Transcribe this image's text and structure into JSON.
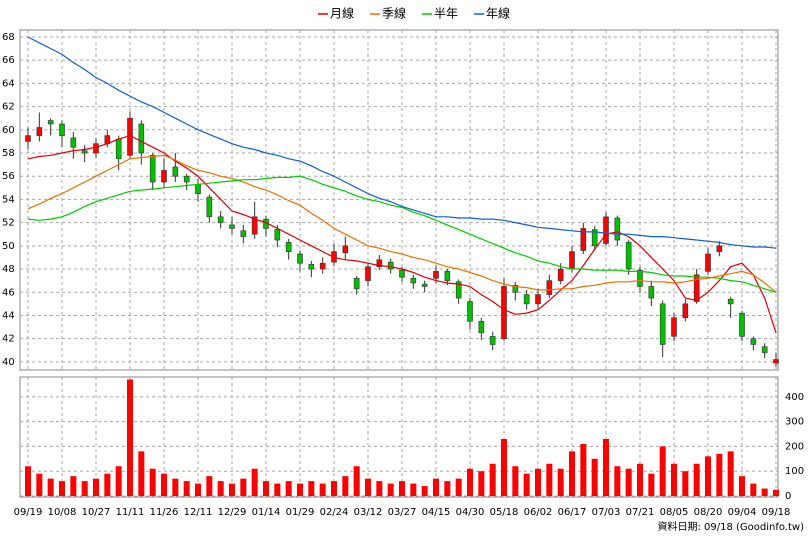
{
  "chart_data": {
    "type": "candlestick",
    "categories": [
      "09/19",
      null,
      null,
      "10/08",
      null,
      null,
      "10/27",
      null,
      null,
      "11/11",
      null,
      null,
      "11/26",
      null,
      null,
      "12/11",
      null,
      null,
      "12/29",
      null,
      null,
      "01/14",
      null,
      null,
      "01/29",
      null,
      null,
      "02/24",
      null,
      null,
      "03/12",
      null,
      null,
      "03/27",
      null,
      null,
      "04/15",
      null,
      null,
      "04/30",
      null,
      null,
      "05/18",
      null,
      null,
      "06/02",
      null,
      null,
      "06/17",
      null,
      null,
      "07/03",
      null,
      null,
      "07/21",
      null,
      null,
      "08/05",
      null,
      null,
      "08/20",
      null,
      null,
      "09/04",
      null,
      null,
      "09/18"
    ],
    "open": [
      59,
      59.5,
      60.8,
      60.5,
      59.3,
      58.2,
      58,
      58.8,
      59.2,
      57.8,
      60.5,
      57.8,
      55.5,
      56.8,
      56,
      55.3,
      54.2,
      52.5,
      51.8,
      51.3,
      51,
      52.3,
      51.4,
      50.3,
      49.3,
      48.4,
      48,
      48.6,
      49.4,
      47.2,
      47,
      48.2,
      48.6,
      47.9,
      47.2,
      46.7,
      47.2,
      47.8,
      46.9,
      45.2,
      43.5,
      42.2,
      42,
      46.6,
      45.8,
      45,
      45.8,
      47,
      48,
      49.6,
      51.4,
      50.2,
      52.4,
      50.3,
      47.9,
      46.5,
      45,
      42.2,
      43.8,
      45.2,
      47.8,
      49.5,
      45.4,
      44.2,
      42,
      41.3,
      39.9
    ],
    "high": [
      60.2,
      61.5,
      61,
      60.8,
      59.8,
      58.7,
      59.3,
      60,
      59.5,
      61.6,
      60.8,
      58,
      57.5,
      58,
      56.2,
      55.8,
      54.4,
      53,
      52.5,
      51.8,
      53.8,
      52.6,
      51.8,
      50.6,
      49.6,
      48.7,
      49,
      50.2,
      50.8,
      47.4,
      48.6,
      49.2,
      48.9,
      48.2,
      47.5,
      47,
      48.3,
      48,
      47.1,
      45.5,
      43.8,
      42.6,
      47.2,
      46.9,
      46.2,
      46.3,
      47.5,
      48.5,
      50,
      52,
      51.7,
      52.9,
      52.6,
      50.5,
      48.2,
      47,
      45.3,
      44.2,
      45.4,
      48,
      49.8,
      50.4,
      45.6,
      44.4,
      42.2,
      41.6,
      40.8
    ],
    "low": [
      58.3,
      59,
      59.5,
      58.5,
      57.5,
      57.2,
      57.6,
      58.5,
      56.5,
      57.5,
      57,
      54.8,
      55,
      55.5,
      54.8,
      53.8,
      52,
      51.5,
      51,
      50.2,
      50.6,
      50.8,
      49.9,
      48.8,
      47.8,
      47.3,
      47.6,
      48.3,
      48.8,
      45.8,
      46.5,
      47.9,
      47.6,
      46.9,
      46.3,
      46,
      46.8,
      46.6,
      45,
      42.8,
      41.9,
      41,
      41.8,
      45.3,
      44.5,
      44.6,
      45.5,
      46.7,
      47.7,
      49.3,
      49.6,
      50,
      50,
      47.5,
      46,
      44.8,
      40.4,
      41.8,
      43.5,
      45,
      47.5,
      49.1,
      43.8,
      41.8,
      41,
      40.3,
      39.6
    ],
    "close": [
      59.5,
      60.2,
      60.5,
      59.5,
      58.5,
      58,
      58.8,
      59.5,
      57.5,
      61,
      58,
      55.5,
      56.5,
      56,
      55.5,
      54.5,
      52.5,
      52,
      51.5,
      50.8,
      52.5,
      51.5,
      50.5,
      49.5,
      48.5,
      48,
      48.5,
      49.5,
      50,
      46.3,
      48.2,
      48.8,
      48,
      47.3,
      46.8,
      46.5,
      47.8,
      47,
      45.5,
      43.5,
      42.5,
      41.5,
      46.5,
      46,
      45,
      45.8,
      47,
      48,
      49.5,
      51.5,
      50,
      52.5,
      50.5,
      48,
      46.5,
      45.5,
      41.5,
      43.8,
      45,
      47.5,
      49.3,
      50,
      45,
      42.2,
      41.5,
      40.8,
      40.2
    ],
    "up_color": "#ff0000",
    "down_color": "#00c000",
    "series": [
      {
        "name": "月線",
        "color": "#e00000",
        "values": [
          57.5,
          57.7,
          57.8,
          58,
          58.2,
          58.3,
          58.5,
          58.8,
          59.2,
          59.5,
          59,
          58.5,
          58,
          57.3,
          56.7,
          56,
          55,
          54,
          53,
          52.7,
          52.3,
          52,
          51.5,
          51,
          50.5,
          50,
          49.5,
          49,
          48.8,
          48.7,
          48.5,
          48.3,
          48.2,
          48,
          47.7,
          47.3,
          47,
          46.8,
          46.7,
          46.5,
          45.8,
          45.2,
          44.5,
          44.1,
          44.2,
          44.5,
          45.3,
          46.2,
          47,
          48.3,
          49.7,
          51,
          51.2,
          50.8,
          50,
          49,
          48,
          47,
          45.5,
          45.3,
          46,
          47,
          48.2,
          48.5,
          47.5,
          45.5,
          42.5
        ]
      },
      {
        "name": "季線",
        "color": "#f07000",
        "values": [
          53.2,
          53.6,
          54.1,
          54.5,
          55,
          55.5,
          56,
          56.5,
          57,
          57.5,
          57.6,
          57.7,
          57.8,
          57.4,
          56.9,
          56.5,
          56.3,
          56,
          55.8,
          55.5,
          55.1,
          54.8,
          54.4,
          53.9,
          53.5,
          52.8,
          52.2,
          51.5,
          51,
          50.5,
          50,
          49.8,
          49.5,
          49.3,
          49,
          48.8,
          48.5,
          48.2,
          48,
          47.7,
          47.4,
          47,
          46.7,
          46.5,
          46.4,
          46.2,
          46.2,
          46.3,
          46.3,
          46.5,
          46.6,
          46.8,
          46.9,
          46.9,
          47,
          46.9,
          46.9,
          46.8,
          46.9,
          47.1,
          47.2,
          47.4,
          47.6,
          47.8,
          47.5,
          46.8,
          46
        ]
      },
      {
        "name": "半年",
        "color": "#00cc00",
        "values": [
          52.3,
          52.2,
          52.3,
          52.5,
          52.9,
          53.4,
          53.8,
          54.1,
          54.4,
          54.7,
          54.8,
          54.9,
          55,
          55.1,
          55.2,
          55.3,
          55.4,
          55.5,
          55.6,
          55.7,
          55.7,
          55.8,
          55.9,
          55.9,
          56,
          55.7,
          55.3,
          55,
          54.7,
          54.3,
          54,
          53.8,
          53.5,
          53.3,
          52.9,
          52.6,
          52.2,
          51.8,
          51.4,
          51,
          50.6,
          50.2,
          49.8,
          49.4,
          49.1,
          48.7,
          48.5,
          48.2,
          48,
          48,
          47.9,
          47.9,
          47.9,
          47.8,
          47.8,
          47.7,
          47.5,
          47.4,
          47.4,
          47.3,
          47.3,
          47.2,
          47,
          46.9,
          46.6,
          46.3,
          46
        ]
      },
      {
        "name": "年線",
        "color": "#1060d0",
        "values": [
          68,
          67.5,
          67,
          66.5,
          65.8,
          65.2,
          64.5,
          64,
          63.4,
          62.9,
          62.4,
          62,
          61.5,
          61,
          60.5,
          60,
          59.6,
          59.2,
          58.8,
          58.5,
          58.3,
          58,
          57.8,
          57.5,
          57.3,
          56.9,
          56.4,
          56,
          55.5,
          55,
          54.5,
          54.1,
          53.8,
          53.4,
          53.1,
          52.8,
          52.5,
          52.5,
          52.4,
          52.4,
          52.3,
          52.3,
          52.2,
          52,
          51.8,
          51.6,
          51.5,
          51.4,
          51.3,
          51.2,
          51.2,
          51.1,
          51,
          51,
          50.9,
          50.8,
          50.8,
          50.7,
          50.6,
          50.5,
          50.4,
          50.3,
          50.1,
          50,
          49.9,
          49.9,
          49.8
        ]
      }
    ],
    "ylim": [
      39.3,
      68.6
    ],
    "yticks": [
      40,
      42,
      44,
      46,
      48,
      50,
      52,
      54,
      56,
      58,
      60,
      62,
      64,
      66,
      68
    ],
    "grid": true,
    "volume": {
      "values": [
        120,
        90,
        70,
        60,
        80,
        60,
        70,
        90,
        120,
        470,
        180,
        110,
        90,
        70,
        60,
        50,
        80,
        60,
        50,
        70,
        110,
        60,
        50,
        60,
        50,
        60,
        50,
        60,
        80,
        120,
        70,
        60,
        50,
        60,
        50,
        40,
        70,
        60,
        70,
        110,
        100,
        130,
        230,
        120,
        90,
        110,
        130,
        110,
        180,
        210,
        150,
        230,
        120,
        110,
        130,
        90,
        200,
        130,
        100,
        130,
        160,
        170,
        180,
        80,
        50,
        30,
        25
      ],
      "color": "#ff0000",
      "ylim": [
        0,
        480
      ],
      "yticks": [
        0,
        100,
        200,
        300,
        400
      ]
    },
    "note": "資料日期: 09/18  (Goodinfo.tw)"
  }
}
